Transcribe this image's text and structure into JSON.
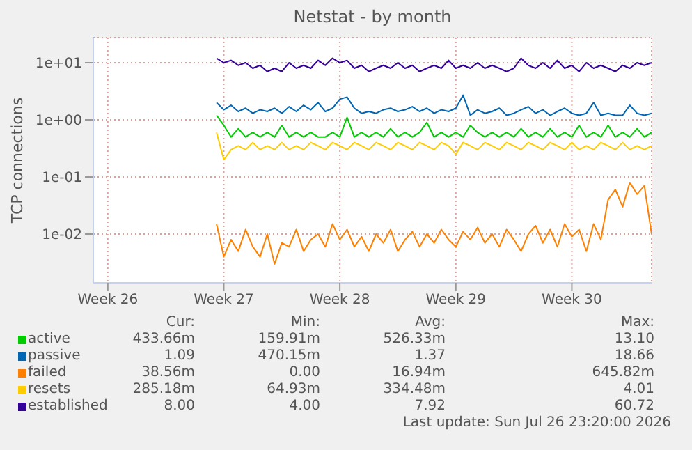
{
  "chart_data": {
    "type": "line",
    "title": "Netstat - by month",
    "ylabel": "TCP connections",
    "log": "y",
    "grid": true,
    "legend": "bottom",
    "marker": "none",
    "line_style": "solid",
    "categories": [
      null,
      null,
      "Week 26",
      null,
      null,
      null,
      null,
      null,
      null,
      null,
      null,
      null,
      null,
      null,
      null,
      null,
      null,
      null,
      "Week 27",
      null,
      null,
      null,
      null,
      null,
      null,
      null,
      null,
      null,
      null,
      null,
      null,
      null,
      null,
      null,
      "Week 28",
      null,
      null,
      null,
      null,
      null,
      null,
      null,
      null,
      null,
      null,
      null,
      null,
      null,
      null,
      null,
      "Week 29",
      null,
      null,
      null,
      null,
      null,
      null,
      null,
      null,
      null,
      null,
      null,
      null,
      null,
      null,
      null,
      "Week 30",
      null,
      null,
      null,
      null,
      null,
      null,
      null,
      null,
      null,
      null,
      null
    ],
    "ylim": [
      0.0014,
      27.5
    ],
    "yticks": [
      {
        "value": 0.01,
        "label": "1e-02"
      },
      {
        "value": 0.1,
        "label": "1e-01"
      },
      {
        "value": 1,
        "label": "1e+00"
      },
      {
        "value": 10,
        "label": "1e+01"
      }
    ],
    "series": [
      {
        "name": "active",
        "color": "#00cc00",
        "values": [
          null,
          null,
          null,
          null,
          null,
          null,
          null,
          null,
          null,
          null,
          null,
          null,
          null,
          null,
          null,
          null,
          null,
          1.2,
          0.8,
          0.5,
          0.7,
          0.5,
          0.6,
          0.5,
          0.6,
          0.5,
          0.8,
          0.5,
          0.6,
          0.5,
          0.6,
          0.5,
          0.5,
          0.6,
          0.5,
          1.1,
          0.5,
          0.6,
          0.5,
          0.6,
          0.5,
          0.7,
          0.5,
          0.6,
          0.5,
          0.6,
          0.9,
          0.5,
          0.6,
          0.5,
          0.6,
          0.5,
          0.8,
          0.6,
          0.5,
          0.6,
          0.5,
          0.6,
          0.5,
          0.7,
          0.5,
          0.6,
          0.5,
          0.7,
          0.5,
          0.6,
          0.5,
          0.8,
          0.5,
          0.6,
          0.5,
          0.8,
          0.5,
          0.6,
          0.5,
          0.7,
          0.5,
          0.6
        ]
      },
      {
        "name": "passive",
        "color": "#0066b3",
        "values": [
          null,
          null,
          null,
          null,
          null,
          null,
          null,
          null,
          null,
          null,
          null,
          null,
          null,
          null,
          null,
          null,
          null,
          2,
          1.5,
          1.8,
          1.4,
          1.6,
          1.3,
          1.5,
          1.4,
          1.6,
          1.3,
          1.7,
          1.4,
          1.8,
          1.5,
          2,
          1.4,
          1.6,
          2.3,
          2.5,
          1.6,
          1.3,
          1.4,
          1.3,
          1.5,
          1.6,
          1.4,
          1.5,
          1.7,
          1.4,
          1.6,
          1.3,
          1.5,
          1.4,
          1.6,
          2.7,
          1.2,
          1.5,
          1.3,
          1.4,
          1.6,
          1.2,
          1.3,
          1.5,
          1.7,
          1.3,
          1.5,
          1.2,
          1.4,
          1.6,
          1.3,
          1.2,
          1.3,
          2,
          1.2,
          1.3,
          1.2,
          1.2,
          1.8,
          1.3,
          1.2,
          1.3
        ]
      },
      {
        "name": "failed",
        "color": "#ff8000",
        "values": [
          null,
          null,
          null,
          null,
          null,
          null,
          null,
          null,
          null,
          null,
          null,
          null,
          null,
          null,
          null,
          null,
          null,
          0.015,
          0.004,
          0.008,
          0.005,
          0.012,
          0.006,
          0.004,
          0.01,
          0.003,
          0.007,
          0.006,
          0.012,
          0.005,
          0.008,
          0.01,
          0.006,
          0.015,
          0.008,
          0.012,
          0.006,
          0.009,
          0.005,
          0.01,
          0.007,
          0.012,
          0.005,
          0.008,
          0.011,
          0.006,
          0.01,
          0.007,
          0.012,
          0.008,
          0.006,
          0.011,
          0.008,
          0.013,
          0.007,
          0.01,
          0.006,
          0.012,
          0.008,
          0.005,
          0.01,
          0.014,
          0.007,
          0.012,
          0.006,
          0.015,
          0.009,
          0.012,
          0.005,
          0.015,
          0.008,
          0.04,
          0.06,
          0.03,
          0.08,
          0.05,
          0.07,
          0.01
        ]
      },
      {
        "name": "resets",
        "color": "#ffcc00",
        "values": [
          null,
          null,
          null,
          null,
          null,
          null,
          null,
          null,
          null,
          null,
          null,
          null,
          null,
          null,
          null,
          null,
          null,
          0.6,
          0.2,
          0.3,
          0.35,
          0.3,
          0.4,
          0.3,
          0.35,
          0.3,
          0.4,
          0.3,
          0.35,
          0.3,
          0.4,
          0.35,
          0.3,
          0.4,
          0.35,
          0.3,
          0.4,
          0.35,
          0.3,
          0.4,
          0.35,
          0.3,
          0.4,
          0.35,
          0.3,
          0.4,
          0.35,
          0.3,
          0.4,
          0.35,
          0.25,
          0.4,
          0.35,
          0.3,
          0.4,
          0.35,
          0.3,
          0.4,
          0.35,
          0.3,
          0.4,
          0.35,
          0.3,
          0.4,
          0.35,
          0.3,
          0.4,
          0.3,
          0.35,
          0.3,
          0.4,
          0.35,
          0.3,
          0.4,
          0.3,
          0.35,
          0.3,
          0.35
        ]
      },
      {
        "name": "established",
        "color": "#330099",
        "values": [
          null,
          null,
          null,
          null,
          null,
          null,
          null,
          null,
          null,
          null,
          null,
          null,
          null,
          null,
          null,
          null,
          null,
          12,
          10,
          11,
          9,
          10,
          8,
          9,
          7,
          8,
          7,
          10,
          8,
          9,
          8,
          11,
          9,
          12,
          10,
          11,
          8,
          9,
          7,
          8,
          9,
          8,
          10,
          8,
          9,
          7,
          8,
          9,
          8,
          11,
          8,
          9,
          8,
          10,
          8,
          9,
          8,
          7,
          8,
          12,
          9,
          8,
          10,
          8,
          11,
          8,
          9,
          7,
          10,
          8,
          9,
          8,
          7,
          9,
          8,
          10,
          9,
          10
        ]
      }
    ],
    "annotations": [
      "Cur:",
      "Min:",
      "Avg:",
      "Max:",
      "433.66m",
      "159.91m",
      "526.33m",
      "13.10",
      "1.09",
      "470.15m",
      "1.37",
      "18.66",
      "38.56m",
      "0.00",
      "16.94m",
      "645.82m",
      "285.18m",
      "64.93m",
      "334.48m",
      "4.01",
      "8.00",
      "4.00",
      "7.92",
      "60.72",
      "Last update: Sun Jul 26 23:20:00 2026"
    ]
  }
}
